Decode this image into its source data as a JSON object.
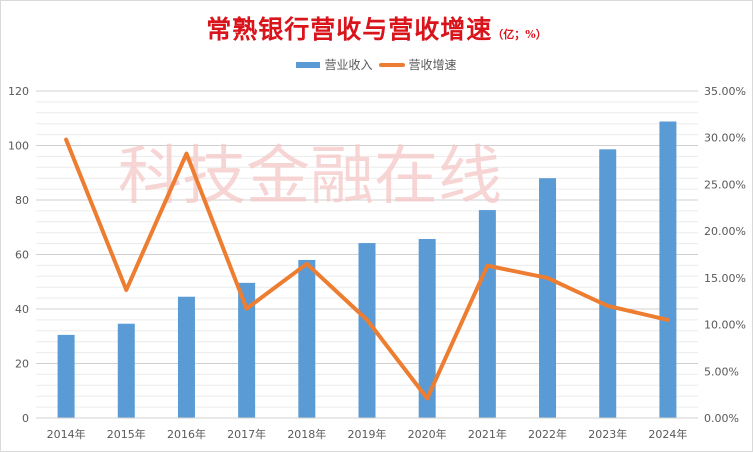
{
  "chart_data": {
    "type": "bar+line",
    "title": "常熟银行营收与营收增速",
    "title_unit": "（亿；%）",
    "watermark": "科技金融在线",
    "categories": [
      "2014年",
      "2015年",
      "2016年",
      "2017年",
      "2018年",
      "2019年",
      "2020年",
      "2021年",
      "2022年",
      "2023年",
      "2024年"
    ],
    "series": [
      {
        "name": "营业收入",
        "type": "bar",
        "axis": "left",
        "color": "#5b9bd5",
        "values": [
          30.5,
          34.6,
          44.5,
          49.6,
          58.0,
          64.2,
          65.7,
          76.3,
          88.0,
          98.6,
          108.8
        ]
      },
      {
        "name": "营收增速",
        "type": "line",
        "axis": "right",
        "color": "#ed7d31",
        "unit": "%",
        "values": [
          29.8,
          13.7,
          28.3,
          11.7,
          16.5,
          10.5,
          2.1,
          16.3,
          15.0,
          12.0,
          10.5
        ]
      }
    ],
    "left_axis": {
      "ylim": [
        0,
        120
      ],
      "ticks": [
        0,
        20,
        40,
        60,
        80,
        100,
        120
      ]
    },
    "right_axis": {
      "ylim": [
        0,
        35
      ],
      "ticks": [
        "0.00%",
        "5.00%",
        "10.00%",
        "15.00%",
        "20.00%",
        "25.00%",
        "30.00%",
        "35.00%"
      ]
    },
    "grid": true,
    "legend_position": "top"
  },
  "colors": {
    "title": "#d9141b",
    "bar": "#5b9bd5",
    "line": "#ed7d31",
    "grid": "#d9d9d9",
    "watermark": "#f4c7c7"
  }
}
